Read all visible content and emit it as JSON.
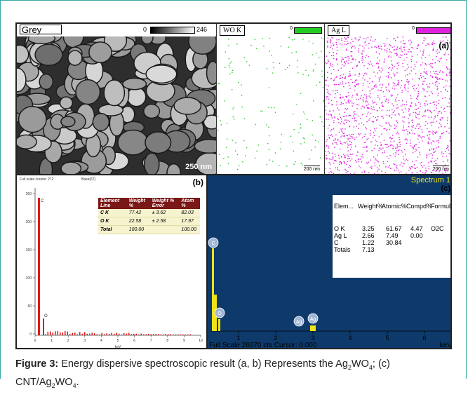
{
  "figure": {
    "panel_a": {
      "sem_title": "Grey",
      "sem_range": [
        "0",
        "246"
      ],
      "sem_scale_bar": "250 nm",
      "map_wo": {
        "title": "WO K",
        "zero": "0",
        "color": "#22cc22",
        "scale_bar": "200 nm"
      },
      "map_ag": {
        "title": "Ag L",
        "zero": "0",
        "color": "#e020e0",
        "scale_bar": "200 nm"
      },
      "label": "(a)"
    },
    "panel_b": {
      "header_left": "Full scale counts: 272",
      "header_right": "Base(67)",
      "label": "(b)",
      "table": {
        "headers": [
          "Element Line",
          "Weight %",
          "Weight % Error",
          "Atom %"
        ],
        "rows": [
          [
            "C K",
            "77.42",
            "± 3.62",
            "82.03"
          ],
          [
            "O K",
            "22.58",
            "± 2.58",
            "17.97"
          ],
          [
            "Total",
            "100.00",
            "",
            "100.00"
          ]
        ]
      },
      "y_ticks": [
        "250",
        "200",
        "150",
        "100",
        "50",
        "0"
      ],
      "x_ticks": [
        "0",
        "1",
        "2",
        "3",
        "4",
        "5",
        "6",
        "7",
        "8",
        "9",
        "10"
      ],
      "xlabel": "keV",
      "peaks": [
        "C",
        "O"
      ]
    },
    "panel_c": {
      "title": "Spectrum 1",
      "label": "(c)",
      "table": {
        "headers": [
          "Elem...",
          "Weight%",
          "Atomic%",
          "Compd%",
          "Formula"
        ],
        "rows": [
          [
            "O K",
            "3.25",
            "61.67",
            "4.47",
            "O2C"
          ],
          [
            "Ag L",
            "2.66",
            "7.49",
            "0.00",
            ""
          ],
          [
            "C",
            "1.22",
            "30.84",
            "",
            ""
          ],
          [
            "Totals",
            "7.13",
            "",
            "",
            ""
          ]
        ]
      },
      "x_ticks": [
        "1",
        "2",
        "3",
        "4",
        "5",
        "6"
      ],
      "peaks": [
        "C",
        "O",
        "Ag",
        "Ag"
      ],
      "footer": "Full Scale 26070 cts Cursor: 0.000",
      "xlabel": "keV"
    }
  },
  "caption": {
    "label": "Figure 3:",
    "text_before": "Energy dispersive spectroscopic result (a, b) Represents the Ag",
    "sub1": "2",
    "mid1": "WO",
    "sub2": "4",
    "mid2": "; (c) CNT/Ag",
    "sub3": "2",
    "mid3": "WO",
    "sub4": "4",
    "end": "."
  }
}
